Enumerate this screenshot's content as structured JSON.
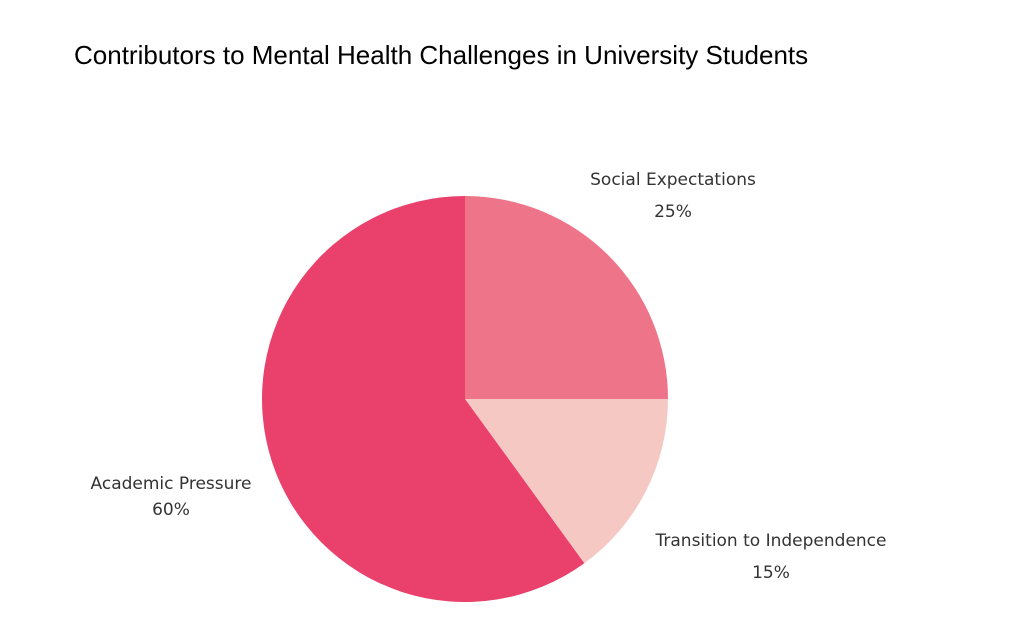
{
  "chart_data": {
    "type": "pie",
    "title": "Contributors to Mental Health Challenges in University Students",
    "slices": [
      {
        "label": "Social Expectations",
        "value": 25,
        "value_label": "25%",
        "color": "#ee7589"
      },
      {
        "label": "Transition to Independence",
        "value": 15,
        "value_label": "15%",
        "color": "#f6c8c4"
      },
      {
        "label": "Academic Pressure",
        "value": 60,
        "value_label": "60%",
        "color": "#e9416b"
      }
    ],
    "legend": "none"
  }
}
